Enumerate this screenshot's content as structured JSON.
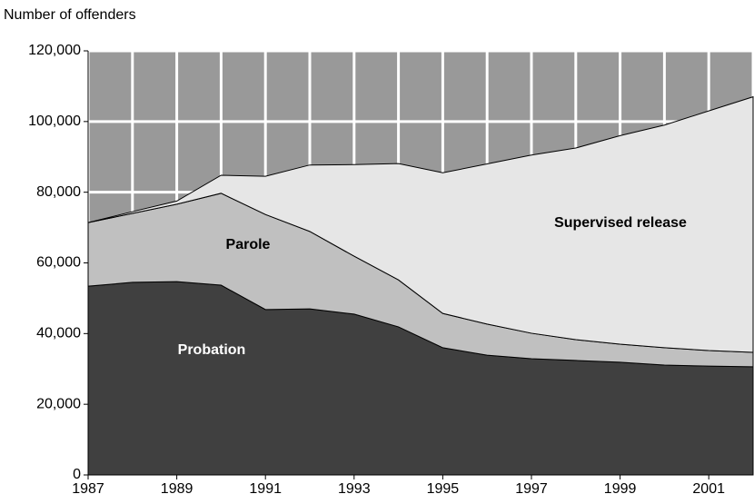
{
  "chart_data": {
    "type": "stacked_area",
    "y_axis_title": "Number of offenders",
    "x": [
      1987,
      1988,
      1989,
      1990,
      1991,
      1992,
      1993,
      1994,
      1995,
      1996,
      1997,
      1998,
      1999,
      2000,
      2001,
      2002
    ],
    "series": [
      {
        "name": "Probation",
        "color": "#404040",
        "values": [
          53400,
          54500,
          54700,
          53700,
          46800,
          47000,
          45500,
          41900,
          36000,
          33900,
          32900,
          32400,
          31900,
          31100,
          30800,
          30600
        ]
      },
      {
        "name": "Parole",
        "color": "#c0c0c0",
        "values": [
          18000,
          19500,
          21900,
          26000,
          26900,
          21900,
          16400,
          13300,
          9700,
          8800,
          7200,
          5900,
          5100,
          4900,
          4400,
          4100
        ]
      },
      {
        "name": "Supervised release",
        "color": "#e6e6e6",
        "values": [
          0,
          500,
          900,
          5100,
          10800,
          18800,
          25900,
          32900,
          39800,
          45300,
          50400,
          54200,
          59000,
          63000,
          67800,
          72300
        ]
      }
    ],
    "xlim": [
      1987,
      2002
    ],
    "xticks": [
      1987,
      1989,
      1991,
      1993,
      1995,
      1997,
      1999,
      2001
    ],
    "ylim": [
      0,
      120000
    ],
    "yticks": [
      0,
      {
        "value": 20000,
        "label": "20,000"
      },
      {
        "value": 40000,
        "label": "40,000"
      },
      {
        "value": 60000,
        "label": "60,000"
      },
      {
        "value": 80000,
        "label": "80,000"
      },
      {
        "value": 100000,
        "label": "100,000"
      },
      {
        "value": 120000,
        "label": "120,000"
      }
    ],
    "background": "#999999",
    "grid": true,
    "grid_color": "#ffffff"
  }
}
